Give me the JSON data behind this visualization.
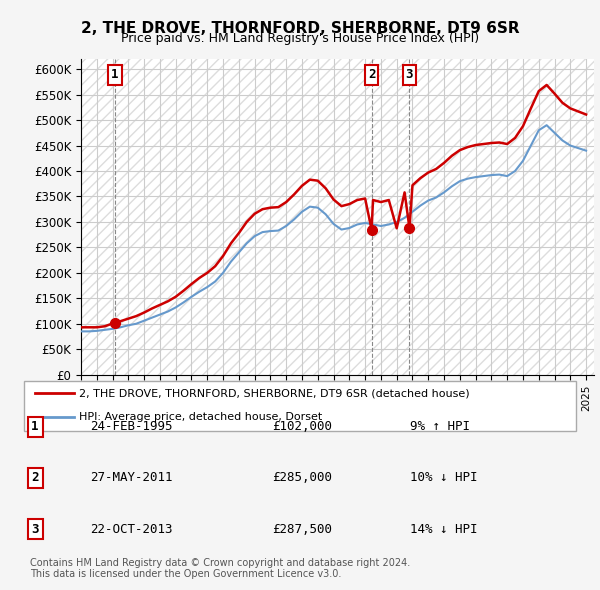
{
  "title": "2, THE DROVE, THORNFORD, SHERBORNE, DT9 6SR",
  "subtitle": "Price paid vs. HM Land Registry's House Price Index (HPI)",
  "ylabel_ticks": [
    "£0",
    "£50K",
    "£100K",
    "£150K",
    "£200K",
    "£250K",
    "£300K",
    "£350K",
    "£400K",
    "£450K",
    "£500K",
    "£550K",
    "£600K"
  ],
  "ytick_values": [
    0,
    50000,
    100000,
    150000,
    200000,
    250000,
    300000,
    350000,
    400000,
    450000,
    500000,
    550000,
    600000
  ],
  "xlim": [
    1993,
    2025.5
  ],
  "ylim": [
    0,
    620000
  ],
  "bg_color": "#f0f0f0",
  "plot_bg_color": "#ffffff",
  "hatch_color": "#cccccc",
  "grid_color": "#cccccc",
  "red_line_color": "#cc0000",
  "blue_line_color": "#6699cc",
  "marker_color": "#cc0000",
  "transactions": [
    {
      "num": 1,
      "year": 1995.15,
      "price": 102000,
      "label": "1",
      "x_chart": 1995.15
    },
    {
      "num": 2,
      "year": 2011.41,
      "price": 285000,
      "label": "2",
      "x_chart": 2011.41
    },
    {
      "num": 3,
      "year": 2013.81,
      "price": 287500,
      "label": "3",
      "x_chart": 2013.81
    }
  ],
  "legend_entries": [
    "2, THE DROVE, THORNFORD, SHERBORNE, DT9 6SR (detached house)",
    "HPI: Average price, detached house, Dorset"
  ],
  "table_rows": [
    {
      "num": "1",
      "date": "24-FEB-1995",
      "price": "£102,000",
      "hpi": "9% ↑ HPI"
    },
    {
      "num": "2",
      "date": "27-MAY-2011",
      "price": "£285,000",
      "hpi": "10% ↓ HPI"
    },
    {
      "num": "3",
      "date": "22-OCT-2013",
      "price": "£287,500",
      "hpi": "14% ↓ HPI"
    }
  ],
  "footer": "Contains HM Land Registry data © Crown copyright and database right 2024.\nThis data is licensed under the Open Government Licence v3.0.",
  "hpi_data_x": [
    1993.0,
    1993.5,
    1994.0,
    1994.5,
    1995.0,
    1995.5,
    1996.0,
    1996.5,
    1997.0,
    1997.5,
    1998.0,
    1998.5,
    1999.0,
    1999.5,
    2000.0,
    2000.5,
    2001.0,
    2001.5,
    2002.0,
    2002.5,
    2003.0,
    2003.5,
    2004.0,
    2004.5,
    2005.0,
    2005.5,
    2006.0,
    2006.5,
    2007.0,
    2007.5,
    2008.0,
    2008.5,
    2009.0,
    2009.5,
    2010.0,
    2010.5,
    2011.0,
    2011.5,
    2012.0,
    2012.5,
    2013.0,
    2013.5,
    2014.0,
    2014.5,
    2015.0,
    2015.5,
    2016.0,
    2016.5,
    2017.0,
    2017.5,
    2018.0,
    2018.5,
    2019.0,
    2019.5,
    2020.0,
    2020.5,
    2021.0,
    2021.5,
    2022.0,
    2022.5,
    2023.0,
    2023.5,
    2024.0,
    2024.5,
    2025.0
  ],
  "hpi_data_y": [
    85000,
    85000,
    86000,
    88000,
    90000,
    93000,
    97000,
    100000,
    106000,
    112000,
    118000,
    124000,
    132000,
    142000,
    153000,
    163000,
    172000,
    183000,
    200000,
    222000,
    240000,
    258000,
    272000,
    280000,
    282000,
    283000,
    292000,
    305000,
    320000,
    330000,
    328000,
    315000,
    296000,
    285000,
    288000,
    295000,
    298000,
    295000,
    292000,
    295000,
    300000,
    308000,
    320000,
    332000,
    342000,
    348000,
    358000,
    370000,
    380000,
    385000,
    388000,
    390000,
    392000,
    393000,
    390000,
    400000,
    420000,
    450000,
    480000,
    490000,
    475000,
    460000,
    450000,
    445000,
    440000
  ],
  "red_data_x": [
    1993.0,
    1993.5,
    1994.0,
    1994.5,
    1995.15,
    1995.5,
    1996.0,
    1996.5,
    1997.0,
    1997.5,
    1998.0,
    1998.5,
    1999.0,
    1999.5,
    2000.0,
    2000.5,
    2001.0,
    2001.5,
    2002.0,
    2002.5,
    2003.0,
    2003.5,
    2004.0,
    2004.5,
    2005.0,
    2005.5,
    2006.0,
    2006.5,
    2007.0,
    2007.5,
    2008.0,
    2008.5,
    2009.0,
    2009.5,
    2010.0,
    2010.5,
    2011.0,
    2011.41,
    2011.5,
    2012.0,
    2012.5,
    2013.0,
    2013.5,
    2013.81,
    2014.0,
    2014.5,
    2015.0,
    2015.5,
    2016.0,
    2016.5,
    2017.0,
    2017.5,
    2018.0,
    2018.5,
    2019.0,
    2019.5,
    2020.0,
    2020.5,
    2021.0,
    2021.5,
    2022.0,
    2022.5,
    2023.0,
    2023.5,
    2024.0,
    2024.5,
    2025.0
  ],
  "red_data_y": [
    93000,
    93000,
    93000,
    95000,
    102000,
    105000,
    110000,
    115000,
    122000,
    130000,
    137000,
    144000,
    153000,
    165000,
    178000,
    190000,
    200000,
    213000,
    233000,
    258000,
    278000,
    300000,
    316000,
    325000,
    328000,
    329000,
    339000,
    354000,
    371000,
    383000,
    381000,
    366000,
    344000,
    331000,
    335000,
    343000,
    346000,
    285000,
    343000,
    339000,
    343000,
    287500,
    358000,
    287500,
    372000,
    386000,
    397000,
    404000,
    416000,
    430000,
    441000,
    447000,
    451000,
    453000,
    455000,
    456000,
    453000,
    465000,
    488000,
    523000,
    557000,
    569000,
    552000,
    534000,
    523000,
    517000,
    511000
  ]
}
